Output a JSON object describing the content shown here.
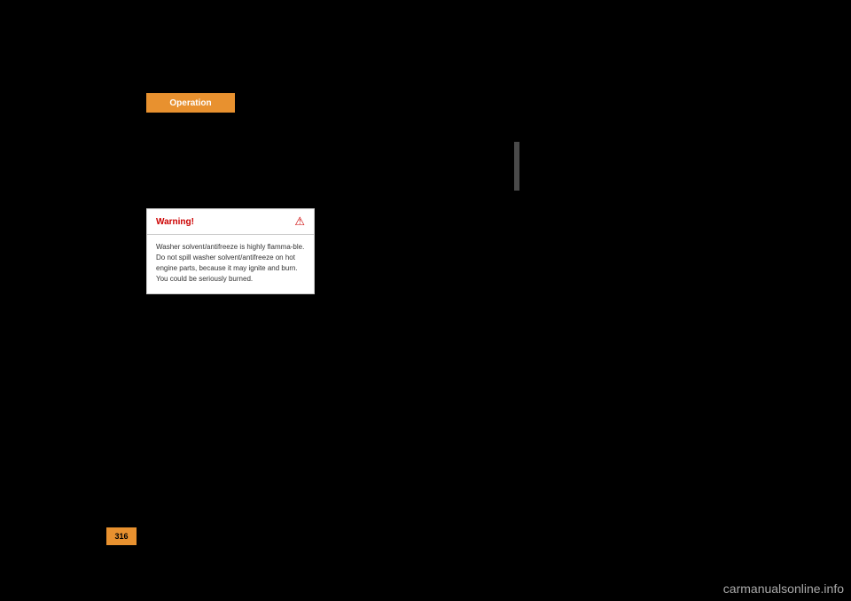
{
  "header": {
    "tab_label": "Operation",
    "tab_bg_color": "#e8912f",
    "tab_text_color": "#ffffff"
  },
  "warning": {
    "title": "Warning!",
    "title_color": "#cc0000",
    "icon_glyph": "⚠",
    "icon_color": "#cc0000",
    "body_text": "Washer solvent/antifreeze is highly flamma-ble. Do not spill washer solvent/antifreeze on hot engine parts, because it may ignite and burn. You could be seriously burned.",
    "box_bg_color": "#ffffff",
    "body_text_color": "#333333"
  },
  "vertical_bar": {
    "color": "#4a4a4a"
  },
  "page_number": {
    "value": "316",
    "bg_color": "#e8912f",
    "text_color": "#000000"
  },
  "watermark": {
    "text": "carmanualsonline.info",
    "color": "#aaaaaa"
  },
  "page_bg_color": "#000000"
}
